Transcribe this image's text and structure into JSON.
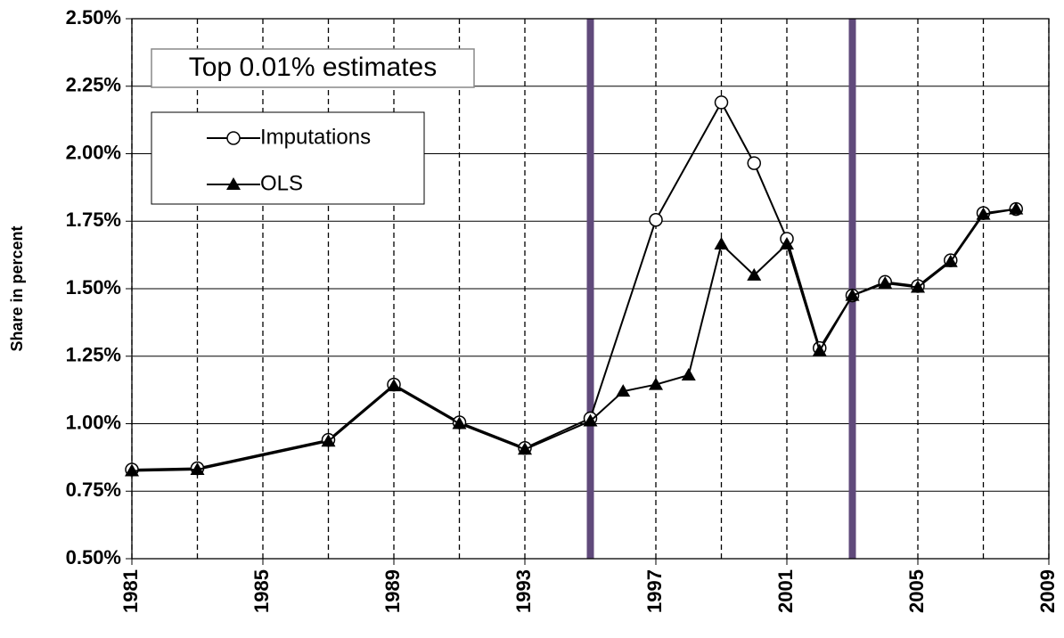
{
  "chart_data": {
    "type": "line",
    "title": "Top 0.01% estimates",
    "y_label": "Share in percent",
    "xlim": [
      1981,
      2009
    ],
    "xticks": [
      1981,
      1985,
      1989,
      1993,
      1997,
      2001,
      2005,
      2009
    ],
    "xgrid": [
      1981,
      1983,
      1985,
      1987,
      1989,
      1991,
      1993,
      1995,
      1997,
      1999,
      2001,
      2003,
      2005,
      2007,
      2009
    ],
    "vlines": [
      1995,
      2003
    ],
    "vline_color": "#604a7b",
    "ylim": [
      0.5,
      2.5
    ],
    "yticks": [
      {
        "value": 0.5,
        "label": "0.50%"
      },
      {
        "value": 0.75,
        "label": "0.75%"
      },
      {
        "value": 1.0,
        "label": "1.00%"
      },
      {
        "value": 1.25,
        "label": "1.25%"
      },
      {
        "value": 1.5,
        "label": "1.50%"
      },
      {
        "value": 1.75,
        "label": "1.75%"
      },
      {
        "value": 2.0,
        "label": "2.00%"
      },
      {
        "value": 2.25,
        "label": "2.25%"
      },
      {
        "value": 2.5,
        "label": "2.50%"
      }
    ],
    "grid": true,
    "series": [
      {
        "name": "Imputations",
        "color": "#000000",
        "marker": "circle",
        "x": [
          1981,
          1983,
          1987,
          1989,
          1991,
          1993,
          1995,
          1997,
          1999,
          2000,
          2001,
          2002,
          2003,
          2004,
          2005,
          2006,
          2007,
          2008
        ],
        "values": [
          0.83,
          0.835,
          0.94,
          1.145,
          1.005,
          0.91,
          1.02,
          1.755,
          2.19,
          1.965,
          1.685,
          1.28,
          1.475,
          1.525,
          1.51,
          1.605,
          1.78,
          1.795
        ]
      },
      {
        "name": "OLS",
        "color": "#000000",
        "marker": "triangle",
        "x": [
          1981,
          1983,
          1987,
          1989,
          1991,
          1993,
          1995,
          1996,
          1997,
          1998,
          1999,
          2000,
          2001,
          2002,
          2003,
          2004,
          2005,
          2006,
          2007,
          2008
        ],
        "values": [
          0.825,
          0.83,
          0.935,
          1.14,
          1.0,
          0.905,
          1.01,
          1.12,
          1.145,
          1.18,
          1.665,
          1.55,
          1.665,
          1.27,
          1.475,
          1.52,
          1.505,
          1.6,
          1.775,
          1.795
        ]
      }
    ]
  }
}
